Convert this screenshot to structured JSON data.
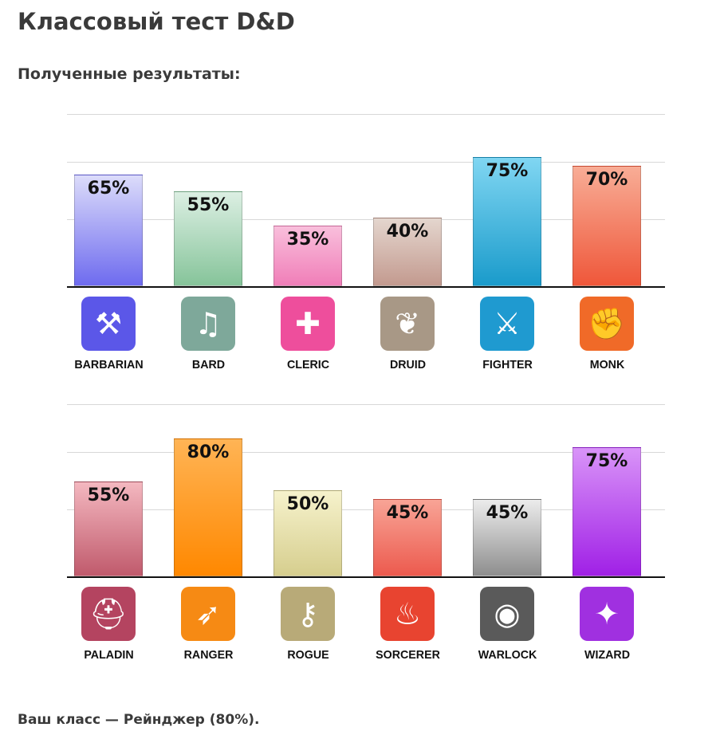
{
  "title": "Классовый тест D&D",
  "subtitle": "Полученные результаты:",
  "result_text": "Ваш класс — Рейнджер (80%).",
  "chart_data": [
    {
      "type": "bar",
      "ylim": [
        0,
        100
      ],
      "categories": [
        "BARBARIAN",
        "BARD",
        "CLERIC",
        "DRUID",
        "FIGHTER",
        "MONK"
      ],
      "values": [
        65,
        55,
        35,
        40,
        75,
        70
      ],
      "labels": [
        "65%",
        "55%",
        "35%",
        "40%",
        "75%",
        "70%"
      ],
      "icons": [
        "double-axe-icon",
        "lyre-icon",
        "holy-symbol-icon",
        "paw-icon",
        "crossed-swords-shield-icon",
        "fist-icon"
      ],
      "bar_colors": [
        [
          "#dcdcfa",
          "#6e6bef"
        ],
        [
          "#dcefe3",
          "#86c49a"
        ],
        [
          "#f9bfdc",
          "#f07eb8"
        ],
        [
          "#e4d6ce",
          "#c39a8f"
        ],
        [
          "#80d6f2",
          "#1a9bcb"
        ],
        [
          "#f8ad96",
          "#ef573a"
        ]
      ],
      "icon_colors": [
        "#5b57e8",
        "#7ea89a",
        "#ee4e9c",
        "#a89886",
        "#1f9ad0",
        "#f06a28"
      ]
    },
    {
      "type": "bar",
      "ylim": [
        0,
        100
      ],
      "categories": [
        "PALADIN",
        "RANGER",
        "ROGUE",
        "SORCERER",
        "WARLOCK",
        "WIZARD"
      ],
      "values": [
        55,
        80,
        50,
        45,
        45,
        75
      ],
      "labels": [
        "55%",
        "80%",
        "50%",
        "45%",
        "45%",
        "75%"
      ],
      "icons": [
        "helmet-icon",
        "bow-arrow-icon",
        "key-dagger-icon",
        "flame-icon",
        "eye-icon",
        "spellbook-icon"
      ],
      "bar_colors": [
        [
          "#f4b8c0",
          "#c05a6c"
        ],
        [
          "#ffb455",
          "#ff8800"
        ],
        [
          "#f6f2cc",
          "#d6ce8e"
        ],
        [
          "#f8a496",
          "#ec5a4e"
        ],
        [
          "#ececec",
          "#8e8e8e"
        ],
        [
          "#d994f8",
          "#a020e6"
        ]
      ],
      "icon_colors": [
        "#b44460",
        "#f68a14",
        "#b8aa78",
        "#e84430",
        "#5a5a5a",
        "#a030e0"
      ]
    }
  ]
}
